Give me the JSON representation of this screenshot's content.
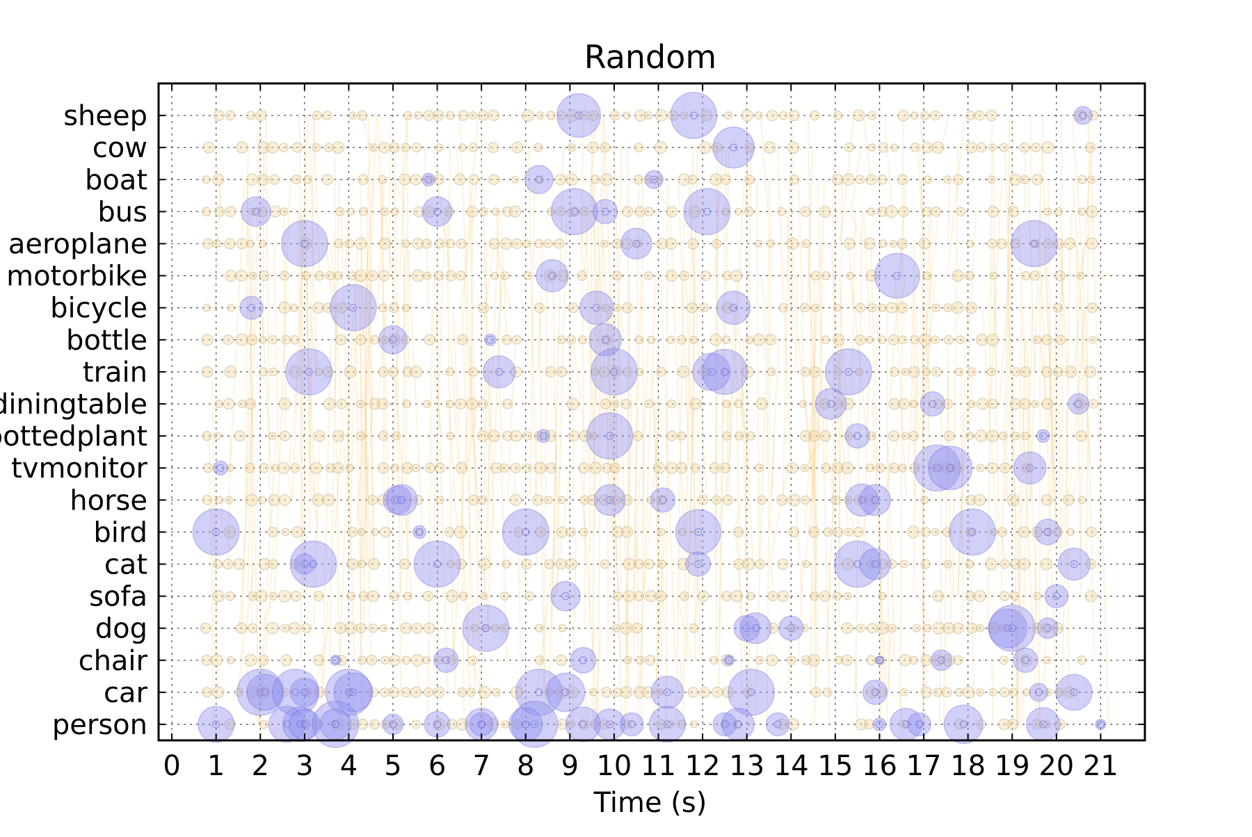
{
  "colors": {
    "background": "#ffffff",
    "axes": "#000000",
    "grid": "#555555",
    "trace_line": "#f7c773",
    "small_dot_fill": "#f2dca8",
    "small_dot_stroke": "#b8a27a",
    "bubble_fill": "#8f8ef0",
    "bubble_stroke": "#6b6bd8"
  },
  "chart_data": {
    "type": "scatter",
    "title": "Random",
    "xlabel": "Time (s)",
    "ylabel": "",
    "xlim": [
      -0.3,
      22
    ],
    "x_ticks": [
      0,
      1,
      2,
      3,
      4,
      5,
      6,
      7,
      8,
      9,
      10,
      11,
      12,
      13,
      14,
      15,
      16,
      17,
      18,
      19,
      20,
      21
    ],
    "categories": [
      "person",
      "car",
      "chair",
      "dog",
      "sofa",
      "cat",
      "bird",
      "horse",
      "tvmonitor",
      "pottedplant",
      "diningtable",
      "train",
      "bottle",
      "bicycle",
      "motorbike",
      "aeroplane",
      "bus",
      "boat",
      "cow",
      "sheep"
    ],
    "grid": true,
    "legend": "none",
    "trace_line_count": 420,
    "dot_time_step": 0.25,
    "dot_time_range": [
      0.8,
      21
    ],
    "bubbles": [
      {
        "x": 9.2,
        "y": "sheep",
        "size": 0.34
      },
      {
        "x": 11.8,
        "y": "sheep",
        "size": 0.36
      },
      {
        "x": 20.6,
        "y": "sheep",
        "size": 0.14
      },
      {
        "x": 12.7,
        "y": "cow",
        "size": 0.32
      },
      {
        "x": 5.8,
        "y": "boat",
        "size": 0.1
      },
      {
        "x": 8.3,
        "y": "boat",
        "size": 0.22
      },
      {
        "x": 10.9,
        "y": "boat",
        "size": 0.14
      },
      {
        "x": 1.9,
        "y": "bus",
        "size": 0.23
      },
      {
        "x": 6.0,
        "y": "bus",
        "size": 0.23
      },
      {
        "x": 9.1,
        "y": "bus",
        "size": 0.36
      },
      {
        "x": 9.8,
        "y": "bus",
        "size": 0.19
      },
      {
        "x": 12.1,
        "y": "bus",
        "size": 0.36
      },
      {
        "x": 3.0,
        "y": "aeroplane",
        "size": 0.36
      },
      {
        "x": 10.5,
        "y": "aeroplane",
        "size": 0.24
      },
      {
        "x": 19.5,
        "y": "aeroplane",
        "size": 0.36
      },
      {
        "x": 8.6,
        "y": "motorbike",
        "size": 0.25
      },
      {
        "x": 16.4,
        "y": "motorbike",
        "size": 0.35
      },
      {
        "x": 1.8,
        "y": "bicycle",
        "size": 0.18
      },
      {
        "x": 4.1,
        "y": "bicycle",
        "size": 0.36
      },
      {
        "x": 9.6,
        "y": "bicycle",
        "size": 0.26
      },
      {
        "x": 12.7,
        "y": "bicycle",
        "size": 0.26
      },
      {
        "x": 5.0,
        "y": "bottle",
        "size": 0.22
      },
      {
        "x": 7.2,
        "y": "bottle",
        "size": 0.09
      },
      {
        "x": 9.8,
        "y": "bottle",
        "size": 0.25
      },
      {
        "x": 3.1,
        "y": "train",
        "size": 0.36
      },
      {
        "x": 7.4,
        "y": "train",
        "size": 0.25
      },
      {
        "x": 10.0,
        "y": "train",
        "size": 0.36
      },
      {
        "x": 12.2,
        "y": "train",
        "size": 0.29
      },
      {
        "x": 12.5,
        "y": "train",
        "size": 0.35
      },
      {
        "x": 15.3,
        "y": "train",
        "size": 0.36
      },
      {
        "x": 14.9,
        "y": "diningtable",
        "size": 0.24
      },
      {
        "x": 17.2,
        "y": "diningtable",
        "size": 0.19
      },
      {
        "x": 20.5,
        "y": "diningtable",
        "size": 0.16
      },
      {
        "x": 8.4,
        "y": "pottedplant",
        "size": 0.1
      },
      {
        "x": 9.9,
        "y": "pottedplant",
        "size": 0.36
      },
      {
        "x": 15.5,
        "y": "pottedplant",
        "size": 0.19
      },
      {
        "x": 19.7,
        "y": "pottedplant",
        "size": 0.1
      },
      {
        "x": 1.1,
        "y": "tvmonitor",
        "size": 0.11
      },
      {
        "x": 17.3,
        "y": "tvmonitor",
        "size": 0.36
      },
      {
        "x": 17.6,
        "y": "tvmonitor",
        "size": 0.34
      },
      {
        "x": 19.4,
        "y": "tvmonitor",
        "size": 0.25
      },
      {
        "x": 5.1,
        "y": "horse",
        "size": 0.22
      },
      {
        "x": 5.2,
        "y": "horse",
        "size": 0.24
      },
      {
        "x": 9.9,
        "y": "horse",
        "size": 0.24
      },
      {
        "x": 11.1,
        "y": "horse",
        "size": 0.19
      },
      {
        "x": 15.6,
        "y": "horse",
        "size": 0.25
      },
      {
        "x": 15.9,
        "y": "horse",
        "size": 0.24
      },
      {
        "x": 1.0,
        "y": "bird",
        "size": 0.36
      },
      {
        "x": 5.6,
        "y": "bird",
        "size": 0.1
      },
      {
        "x": 8.0,
        "y": "bird",
        "size": 0.36
      },
      {
        "x": 11.9,
        "y": "bird",
        "size": 0.35
      },
      {
        "x": 18.1,
        "y": "bird",
        "size": 0.36
      },
      {
        "x": 19.8,
        "y": "bird",
        "size": 0.2
      },
      {
        "x": 3.0,
        "y": "cat",
        "size": 0.16
      },
      {
        "x": 3.2,
        "y": "cat",
        "size": 0.36
      },
      {
        "x": 6.0,
        "y": "cat",
        "size": 0.36
      },
      {
        "x": 11.9,
        "y": "cat",
        "size": 0.19
      },
      {
        "x": 15.5,
        "y": "cat",
        "size": 0.36
      },
      {
        "x": 15.9,
        "y": "cat",
        "size": 0.24
      },
      {
        "x": 20.4,
        "y": "cat",
        "size": 0.25
      },
      {
        "x": 8.9,
        "y": "sofa",
        "size": 0.23
      },
      {
        "x": 20.0,
        "y": "sofa",
        "size": 0.18
      },
      {
        "x": 7.1,
        "y": "dog",
        "size": 0.36
      },
      {
        "x": 13.0,
        "y": "dog",
        "size": 0.2
      },
      {
        "x": 13.2,
        "y": "dog",
        "size": 0.24
      },
      {
        "x": 14.0,
        "y": "dog",
        "size": 0.19
      },
      {
        "x": 18.9,
        "y": "dog",
        "size": 0.3
      },
      {
        "x": 19.0,
        "y": "dog",
        "size": 0.36
      },
      {
        "x": 19.8,
        "y": "dog",
        "size": 0.16
      },
      {
        "x": 3.7,
        "y": "chair",
        "size": 0.08
      },
      {
        "x": 6.2,
        "y": "chair",
        "size": 0.19
      },
      {
        "x": 9.3,
        "y": "chair",
        "size": 0.2
      },
      {
        "x": 12.6,
        "y": "chair",
        "size": 0.08
      },
      {
        "x": 16.0,
        "y": "chair",
        "size": 0.06
      },
      {
        "x": 17.4,
        "y": "chair",
        "size": 0.16
      },
      {
        "x": 19.3,
        "y": "chair",
        "size": 0.19
      },
      {
        "x": 2.0,
        "y": "car",
        "size": 0.36
      },
      {
        "x": 2.1,
        "y": "car",
        "size": 0.28
      },
      {
        "x": 2.8,
        "y": "car",
        "size": 0.36
      },
      {
        "x": 3.0,
        "y": "car",
        "size": 0.22
      },
      {
        "x": 4.0,
        "y": "car",
        "size": 0.36
      },
      {
        "x": 4.1,
        "y": "car",
        "size": 0.3
      },
      {
        "x": 8.3,
        "y": "car",
        "size": 0.36
      },
      {
        "x": 8.9,
        "y": "car",
        "size": 0.3
      },
      {
        "x": 11.2,
        "y": "car",
        "size": 0.25
      },
      {
        "x": 13.1,
        "y": "car",
        "size": 0.36
      },
      {
        "x": 15.9,
        "y": "car",
        "size": 0.19
      },
      {
        "x": 19.6,
        "y": "car",
        "size": 0.14
      },
      {
        "x": 20.4,
        "y": "car",
        "size": 0.28
      },
      {
        "x": 1.0,
        "y": "person",
        "size": 0.28
      },
      {
        "x": 2.6,
        "y": "person",
        "size": 0.28
      },
      {
        "x": 2.9,
        "y": "person",
        "size": 0.27
      },
      {
        "x": 3.0,
        "y": "person",
        "size": 0.24
      },
      {
        "x": 3.7,
        "y": "person",
        "size": 0.36
      },
      {
        "x": 3.7,
        "y": "person",
        "size": 0.24
      },
      {
        "x": 5.0,
        "y": "person",
        "size": 0.16
      },
      {
        "x": 6.0,
        "y": "person",
        "size": 0.2
      },
      {
        "x": 7.0,
        "y": "person",
        "size": 0.25
      },
      {
        "x": 7.0,
        "y": "person",
        "size": 0.18
      },
      {
        "x": 8.2,
        "y": "person",
        "size": 0.36
      },
      {
        "x": 8.0,
        "y": "person",
        "size": 0.26
      },
      {
        "x": 9.3,
        "y": "person",
        "size": 0.27
      },
      {
        "x": 9.9,
        "y": "person",
        "size": 0.24
      },
      {
        "x": 10.4,
        "y": "person",
        "size": 0.18
      },
      {
        "x": 11.2,
        "y": "person",
        "size": 0.28
      },
      {
        "x": 12.5,
        "y": "person",
        "size": 0.18
      },
      {
        "x": 12.8,
        "y": "person",
        "size": 0.25
      },
      {
        "x": 13.7,
        "y": "person",
        "size": 0.18
      },
      {
        "x": 16.0,
        "y": "person",
        "size": 0.1
      },
      {
        "x": 16.6,
        "y": "person",
        "size": 0.25
      },
      {
        "x": 16.9,
        "y": "person",
        "size": 0.18
      },
      {
        "x": 17.9,
        "y": "person",
        "size": 0.3
      },
      {
        "x": 19.7,
        "y": "person",
        "size": 0.26
      },
      {
        "x": 21.0,
        "y": "person",
        "size": 0.08
      }
    ]
  }
}
